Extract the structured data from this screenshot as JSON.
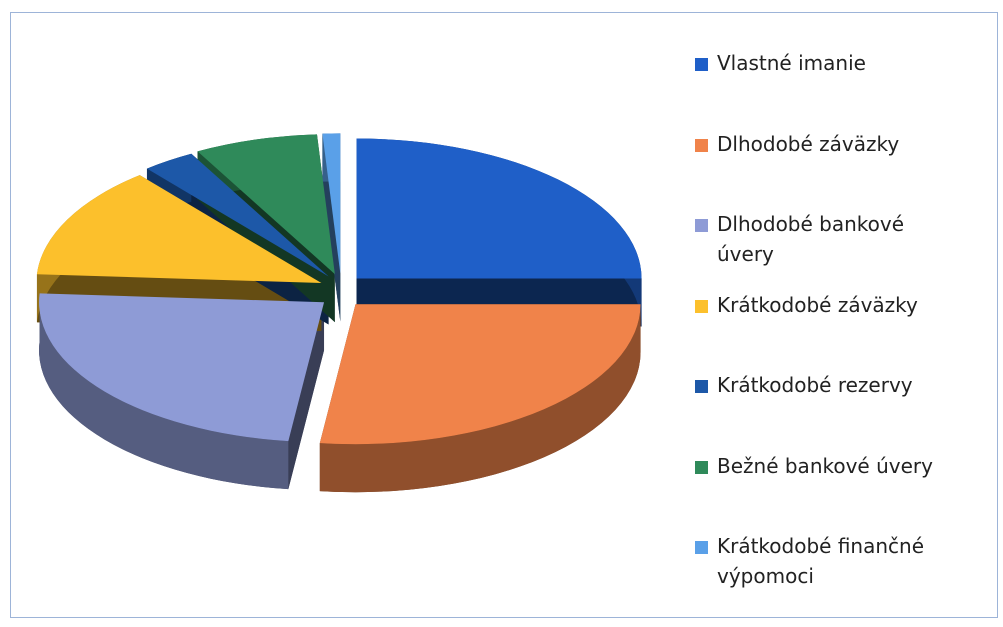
{
  "chart_data": {
    "type": "pie",
    "categories": [
      "Vlastné imanie",
      "Dlhodobé záväzky",
      "Dlhodobé bankové úvery",
      "Krátkodobé záväzky",
      "Krátkodobé rezervy",
      "Bežné bankové úvery",
      "Krátkodobé finančné výpomoci"
    ],
    "values": [
      25,
      27,
      24,
      13,
      3,
      7,
      1
    ],
    "colors": [
      "#1f5fc8",
      "#f0834a",
      "#8e9bd6",
      "#fcc02c",
      "#1d58a8",
      "#2f8a5a",
      "#5aa0e8"
    ],
    "legend": "right"
  }
}
